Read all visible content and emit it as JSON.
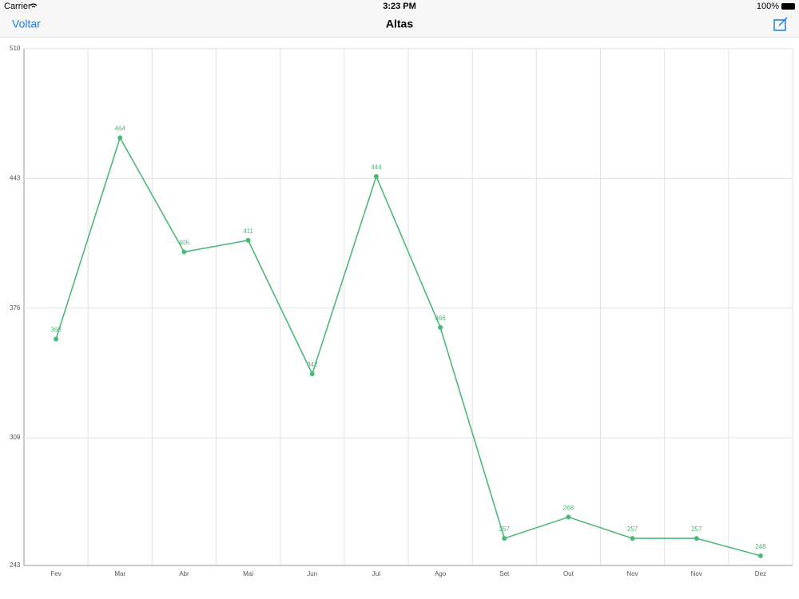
{
  "status_bar": {
    "carrier": "Carrier",
    "time": "3:23 PM",
    "battery": "100%"
  },
  "nav": {
    "back": "Voltar",
    "title": "Altas"
  },
  "chart_data": {
    "type": "line",
    "categories": [
      "Fev",
      "Mar",
      "Abr",
      "Mai",
      "Jun",
      "Jul",
      "Ago",
      "Set",
      "Out",
      "Nov",
      "Nov",
      "Dez"
    ],
    "values": [
      360,
      464,
      405,
      411,
      342,
      444,
      366,
      257,
      268,
      257,
      257,
      248
    ],
    "color": "#4cb87a",
    "ylim": [
      243,
      510
    ],
    "yticks": [
      243,
      309,
      376,
      443,
      510
    ],
    "grid": true
  }
}
